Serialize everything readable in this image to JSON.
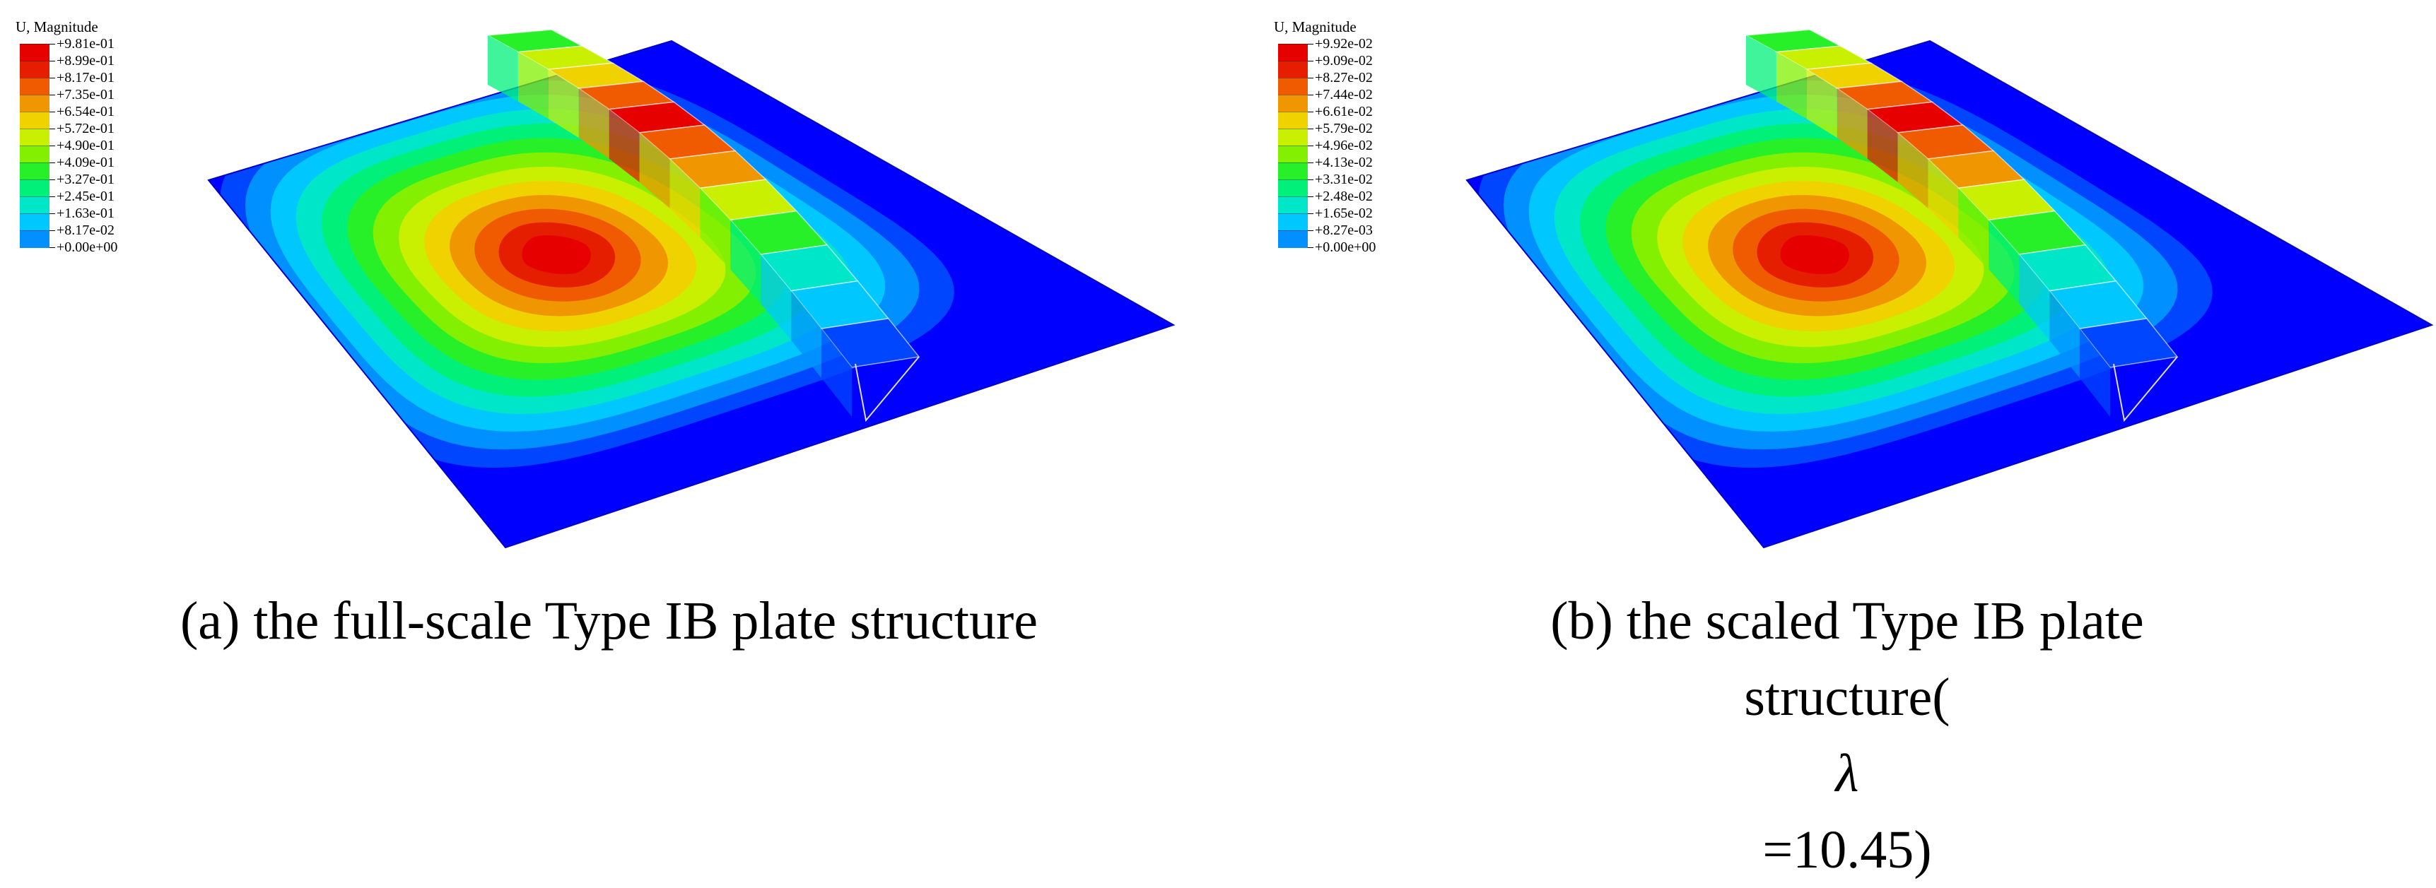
{
  "colors": {
    "scale": [
      "#0000ff",
      "#0046ff",
      "#0090ff",
      "#00c8ff",
      "#00e6c8",
      "#00f07a",
      "#28f028",
      "#82f000",
      "#c8f000",
      "#f0d200",
      "#f09600",
      "#f05a00",
      "#e61e00",
      "#e60000"
    ]
  },
  "panels": [
    {
      "legend": {
        "title": "U, Magnitude",
        "labels": [
          "+9.81e-01",
          "+8.99e-01",
          "+8.17e-01",
          "+7.35e-01",
          "+6.54e-01",
          "+5.72e-01",
          "+4.90e-01",
          "+4.09e-01",
          "+3.27e-01",
          "+2.45e-01",
          "+1.63e-01",
          "+8.17e-02",
          "+0.00e+00"
        ]
      },
      "caption": {
        "line1": "(a) the full-scale Type IB plate structure"
      }
    },
    {
      "legend": {
        "title": "U, Magnitude",
        "labels": [
          "+9.92e-02",
          "+9.09e-02",
          "+8.27e-02",
          "+7.44e-02",
          "+6.61e-02",
          "+5.79e-02",
          "+4.96e-02",
          "+4.13e-02",
          "+3.31e-02",
          "+2.48e-02",
          "+1.65e-02",
          "+8.27e-03",
          "+0.00e+00"
        ]
      },
      "caption": {
        "line1": "(b) the scaled Type IB plate",
        "line2_prefix": "structure(",
        "lambda_symbol": "λ",
        "line2_suffix": "=10.45)"
      }
    }
  ]
}
